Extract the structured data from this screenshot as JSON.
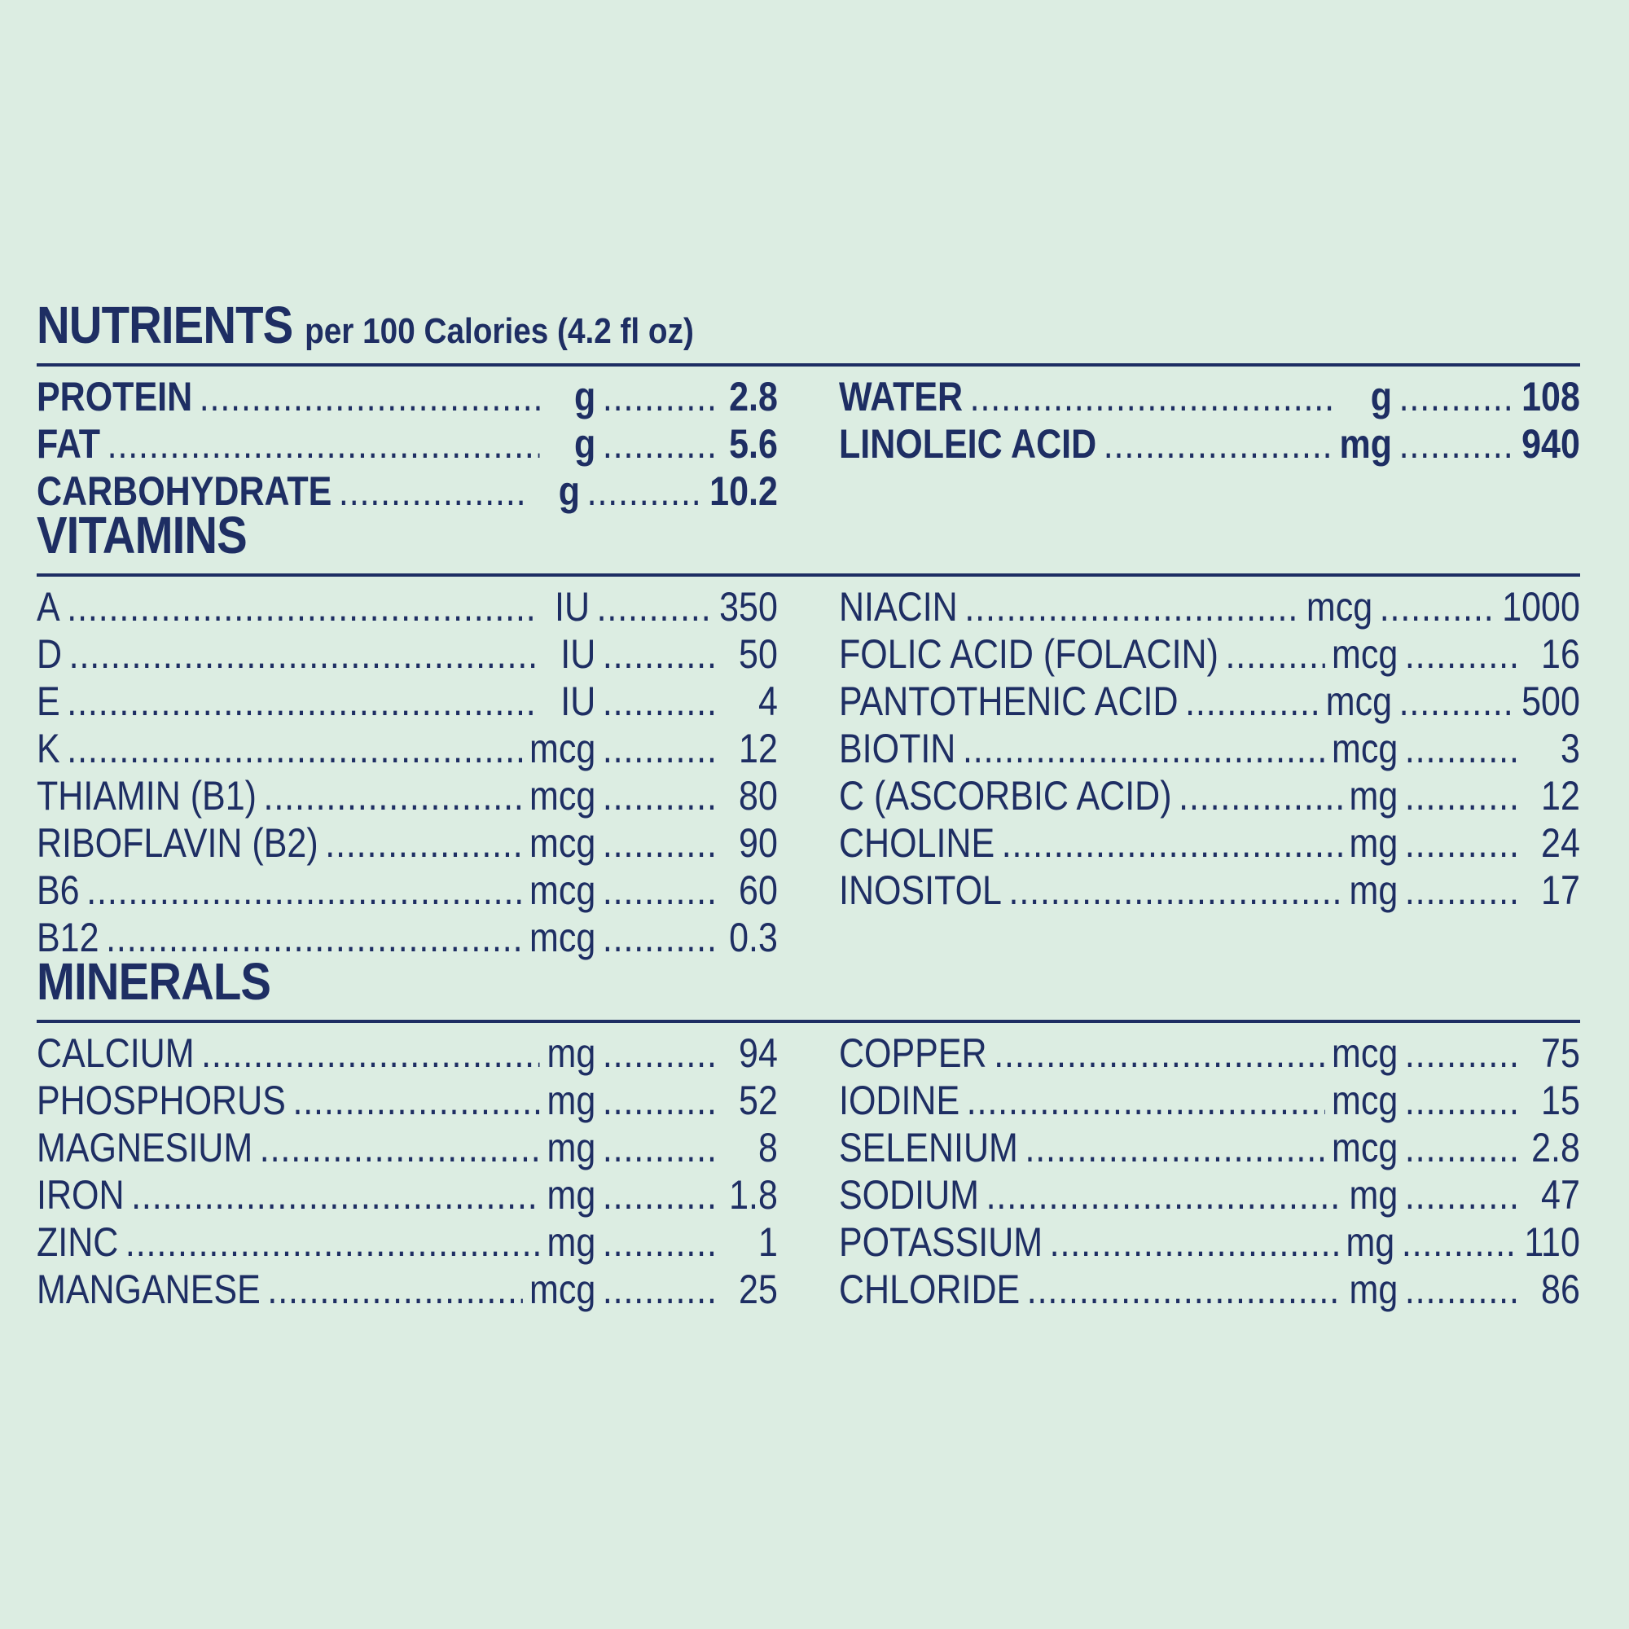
{
  "nutrients": {
    "title": "NUTRIENTS",
    "subtitle": "per 100 Calories (4.2 fl oz)",
    "left": [
      {
        "name": "PROTEIN",
        "unit": "g",
        "value": "2.8"
      },
      {
        "name": "FAT",
        "unit": "g",
        "value": "5.6"
      },
      {
        "name": "CARBOHYDRATE",
        "unit": "g",
        "value": "10.2"
      }
    ],
    "right": [
      {
        "name": "WATER",
        "unit": "g",
        "value": "108"
      },
      {
        "name": "LINOLEIC ACID",
        "unit": "mg",
        "value": "940"
      }
    ]
  },
  "vitamins": {
    "title": "VITAMINS",
    "left": [
      {
        "name": "A",
        "unit": "IU",
        "value": "350"
      },
      {
        "name": "D",
        "unit": "IU",
        "value": "50"
      },
      {
        "name": "E",
        "unit": "IU",
        "value": "4"
      },
      {
        "name": "K",
        "unit": "mcg",
        "value": "12"
      },
      {
        "name": "THIAMIN (B1)",
        "unit": "mcg",
        "value": "80"
      },
      {
        "name": "RIBOFLAVIN (B2)",
        "unit": "mcg",
        "value": "90"
      },
      {
        "name": "B6",
        "unit": "mcg",
        "value": "60"
      },
      {
        "name": "B12",
        "unit": "mcg",
        "value": "0.3"
      }
    ],
    "right": [
      {
        "name": "NIACIN",
        "unit": "mcg",
        "value": "1000"
      },
      {
        "name": "FOLIC ACID (FOLACIN)",
        "unit": "mcg",
        "value": "16"
      },
      {
        "name": "PANTOTHENIC ACID",
        "unit": "mcg",
        "value": "500"
      },
      {
        "name": "BIOTIN",
        "unit": "mcg",
        "value": "3"
      },
      {
        "name": "C (ASCORBIC ACID)",
        "unit": "mg",
        "value": "12"
      },
      {
        "name": "CHOLINE",
        "unit": "mg",
        "value": "24"
      },
      {
        "name": "INOSITOL",
        "unit": "mg",
        "value": "17"
      }
    ]
  },
  "minerals": {
    "title": "MINERALS",
    "left": [
      {
        "name": "CALCIUM",
        "unit": "mg",
        "value": "94"
      },
      {
        "name": "PHOSPHORUS",
        "unit": "mg",
        "value": "52"
      },
      {
        "name": "MAGNESIUM",
        "unit": "mg",
        "value": "8"
      },
      {
        "name": "IRON",
        "unit": "mg",
        "value": "1.8"
      },
      {
        "name": "ZINC",
        "unit": "mg",
        "value": "1"
      },
      {
        "name": "MANGANESE",
        "unit": "mcg",
        "value": "25"
      }
    ],
    "right": [
      {
        "name": "COPPER",
        "unit": "mcg",
        "value": "75"
      },
      {
        "name": "IODINE",
        "unit": "mcg",
        "value": "15"
      },
      {
        "name": "SELENIUM",
        "unit": "mcg",
        "value": "2.8"
      },
      {
        "name": "SODIUM",
        "unit": "mg",
        "value": "47"
      },
      {
        "name": "POTASSIUM",
        "unit": "mg",
        "value": "110"
      },
      {
        "name": "CHLORIDE",
        "unit": "mg",
        "value": "86"
      }
    ]
  }
}
